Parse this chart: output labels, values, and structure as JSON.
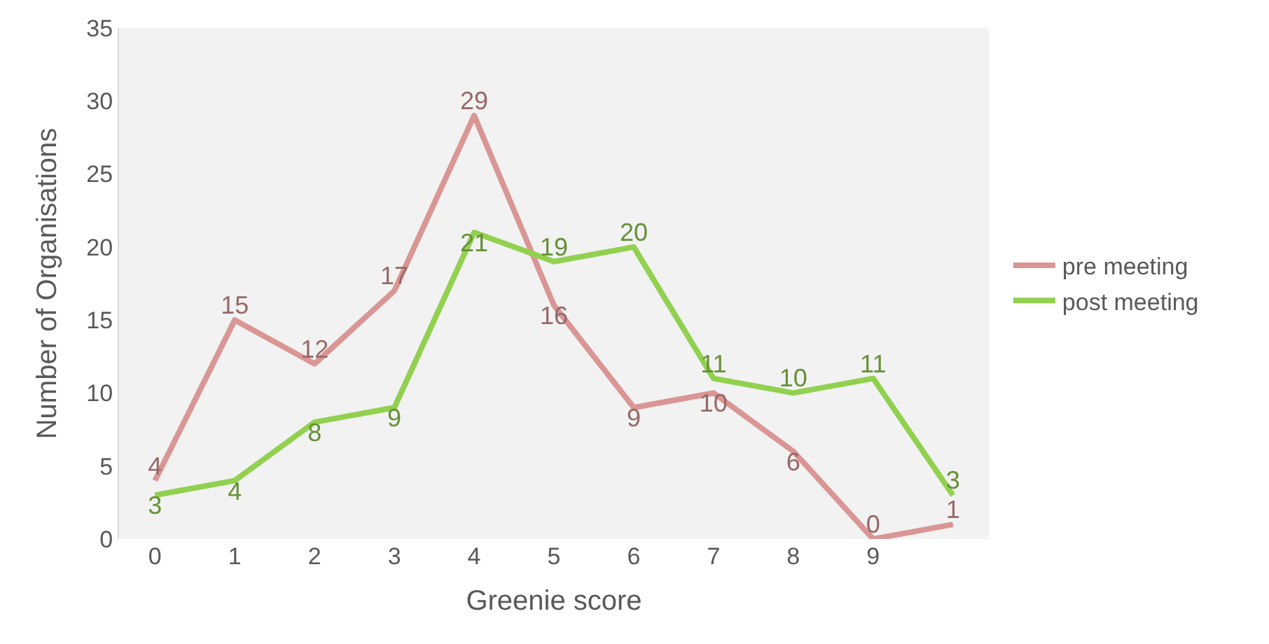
{
  "chart_data": {
    "type": "line",
    "xlabel": "Greenie score",
    "ylabel": "Number of Organisations",
    "categories": [
      "0",
      "1",
      "2",
      "3",
      "4",
      "5",
      "6",
      "7",
      "8",
      "9",
      null
    ],
    "series": [
      {
        "name": "pre meeting",
        "color": "#d99694",
        "values": [
          4,
          15,
          12,
          17,
          29,
          16,
          9,
          10,
          6,
          0,
          1
        ]
      },
      {
        "name": "post meeting",
        "color": "#92d050",
        "values": [
          3,
          4,
          8,
          9,
          21,
          19,
          20,
          11,
          10,
          11,
          3
        ]
      }
    ],
    "ylim": [
      0,
      35
    ],
    "yticks": [
      0,
      5,
      10,
      15,
      20,
      25,
      30,
      35
    ],
    "data_labels": true,
    "grid": false,
    "legend": "right",
    "marker": "none",
    "line_style": "solid"
  }
}
